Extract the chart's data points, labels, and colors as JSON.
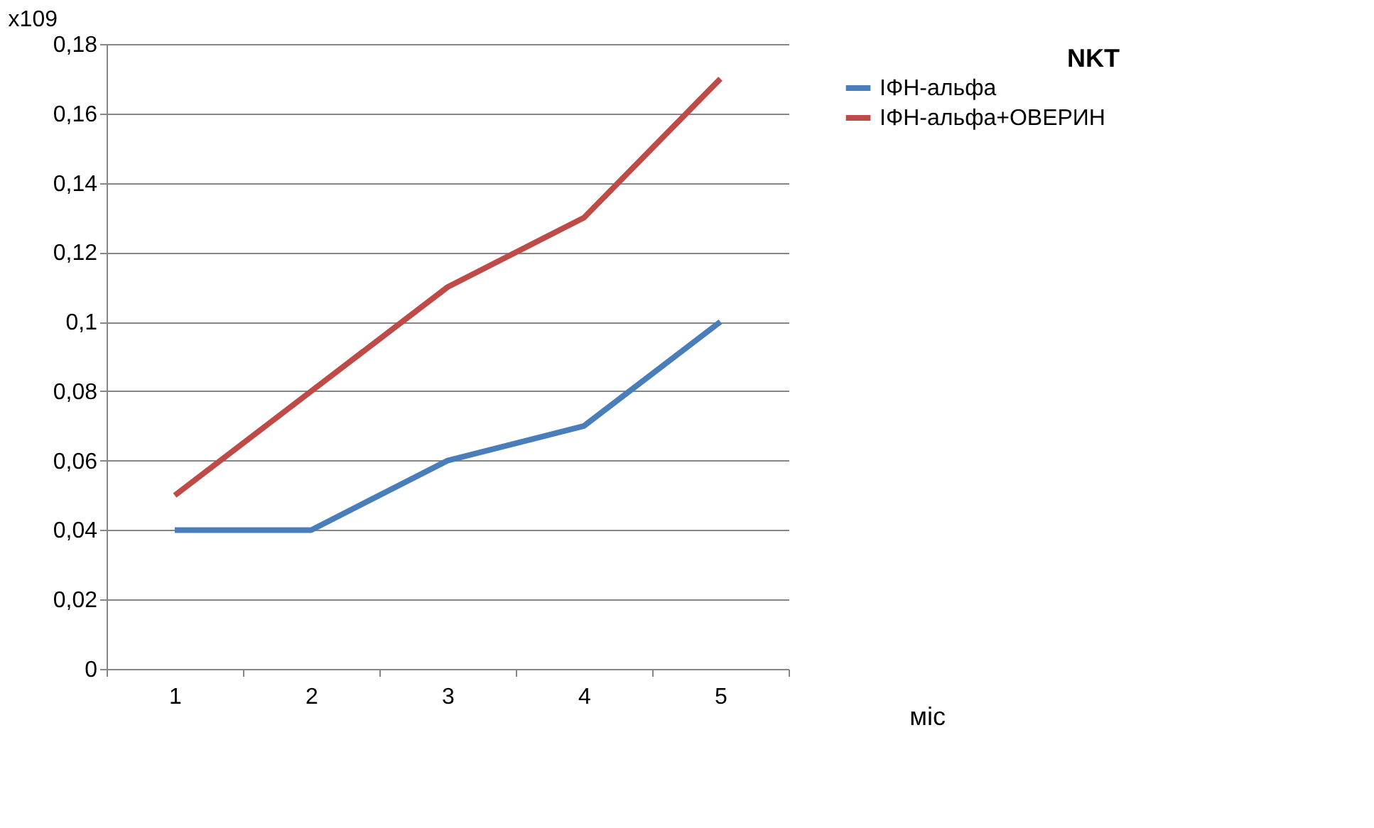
{
  "chart_data": {
    "type": "line",
    "title": "NKT",
    "ylabel": "x109",
    "xlabel": "міс",
    "categories": [
      "1",
      "2",
      "3",
      "4",
      "5"
    ],
    "series": [
      {
        "name": "ІФН-альфа",
        "color": "#4a7ebb",
        "values": [
          0.04,
          0.04,
          0.06,
          0.07,
          0.1
        ]
      },
      {
        "name": "ІФН-альфа+ОВЕРИН",
        "color": "#be4b48",
        "values": [
          0.05,
          0.08,
          0.11,
          0.13,
          0.17
        ]
      }
    ],
    "ylim": [
      0,
      0.18
    ],
    "yticks": [
      0,
      {
        "value": 0.02,
        "label": "0,02"
      },
      {
        "value": 0.04,
        "label": "0,04"
      },
      {
        "value": 0.06,
        "label": "0,06"
      },
      {
        "value": 0.08,
        "label": "0,08"
      },
      {
        "value": 0.1,
        "label": "0,1"
      },
      {
        "value": 0.12,
        "label": "0,12"
      },
      {
        "value": 0.14,
        "label": "0,14"
      },
      {
        "value": 0.16,
        "label": "0,16"
      },
      {
        "value": 0.18,
        "label": "0,18"
      }
    ],
    "grid": "y",
    "legend": "right",
    "marker": "none",
    "line_style": "solid"
  }
}
